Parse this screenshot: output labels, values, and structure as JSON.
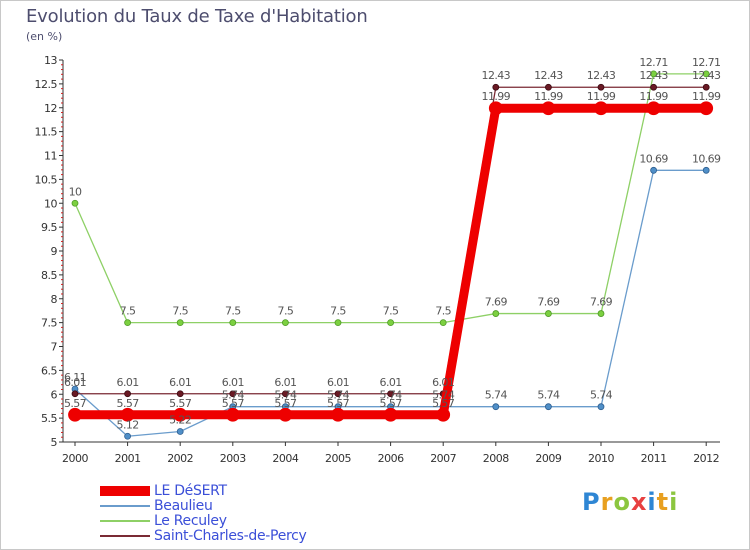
{
  "title": "Evolution du Taux de Taxe d'Habitation",
  "subtitle": "(en %)",
  "logo": {
    "letters": [
      "P",
      "r",
      "o",
      "x",
      "i",
      "t",
      "i"
    ],
    "colors": [
      "#2e86d4",
      "#e8a020",
      "#8cc63f",
      "#e84040",
      "#2e86d4",
      "#e8a020",
      "#8cc63f"
    ]
  },
  "chart_data": {
    "type": "line",
    "title": "Evolution du Taux de Taxe d'Habitation",
    "ylabel": "(en %)",
    "xlabel": "",
    "x": [
      "2000",
      "2001",
      "2002",
      "2003",
      "2004",
      "2005",
      "2006",
      "2007",
      "2008",
      "2009",
      "2010",
      "2011",
      "2012"
    ],
    "ylim": [
      5,
      13
    ],
    "yticks": [
      "5",
      "5.5",
      "6",
      "6.5",
      "7",
      "7.5",
      "8",
      "8.5",
      "9",
      "9.5",
      "10",
      "10.5",
      "11",
      "11.5",
      "12",
      "12.5",
      "13"
    ],
    "grid": false,
    "legend_position": "bottom-left",
    "series": [
      {
        "name": "LE DéSERT",
        "color": "#ee0000",
        "values": [
          5.57,
          5.57,
          5.57,
          5.57,
          5.57,
          5.57,
          5.57,
          5.57,
          11.99,
          11.99,
          11.99,
          11.99,
          11.99
        ],
        "labels": [
          "5.57",
          "5.57",
          "5.57",
          "5.57",
          "5.57",
          "5.57",
          "5.57",
          "5.57",
          "11.99",
          "11.99",
          "11.99",
          "11.99",
          "11.99"
        ]
      },
      {
        "name": "Beaulieu",
        "color": "#6a9ccc",
        "values": [
          6.11,
          5.12,
          5.22,
          5.74,
          5.74,
          5.74,
          5.74,
          5.74,
          5.74,
          5.74,
          5.74,
          10.69,
          10.69
        ],
        "labels": [
          "6.11",
          "5.12",
          "5.22",
          "5.74",
          "5.74",
          "5.74",
          "5.74",
          "5.74",
          "5.74",
          "5.74",
          "5.74",
          "10.69",
          "10.69"
        ]
      },
      {
        "name": "Le Reculey",
        "color": "#8ed066",
        "values": [
          10,
          7.5,
          7.5,
          7.5,
          7.5,
          7.5,
          7.5,
          7.5,
          7.69,
          7.69,
          7.69,
          12.71,
          12.71
        ],
        "labels": [
          "10",
          "7.5",
          "7.5",
          "7.5",
          "7.5",
          "7.5",
          "7.5",
          "7.5",
          "7.69",
          "7.69",
          "7.69",
          "12.71",
          "12.71"
        ]
      },
      {
        "name": "Saint-Charles-de-Percy",
        "color": "#7a2a34",
        "values": [
          6.01,
          6.01,
          6.01,
          6.01,
          6.01,
          6.01,
          6.01,
          6.01,
          12.43,
          12.43,
          12.43,
          12.43,
          12.43
        ],
        "labels": [
          "6.01",
          "6.01",
          "6.01",
          "6.01",
          "6.01",
          "6.01",
          "6.01",
          "6.01",
          "12.43",
          "12.43",
          "12.43",
          "12.43",
          "12.43"
        ]
      }
    ]
  }
}
